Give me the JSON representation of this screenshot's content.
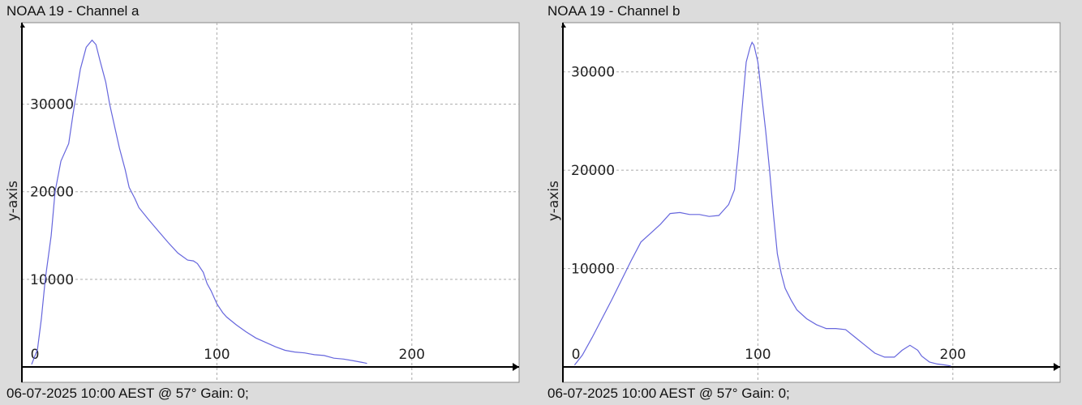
{
  "chart_data": [
    {
      "type": "line",
      "title": "NOAA 19 - Channel a",
      "xlabel": "",
      "ylabel": "y-axis",
      "footer": "06-07-2025 10:00 AEST @ 57° Gain: 0;",
      "xlim": [
        0,
        255
      ],
      "ylim": [
        0,
        39300
      ],
      "x_ticks": [
        0,
        100,
        200
      ],
      "y_ticks": [
        10000,
        20000,
        30000
      ],
      "grid": true,
      "line_color": "#6666dd",
      "x": [
        5,
        8,
        10,
        12,
        15,
        17,
        20,
        24,
        27,
        30,
        33,
        36,
        38,
        40,
        43,
        45,
        48,
        50,
        53,
        55,
        58,
        60,
        65,
        70,
        75,
        80,
        85,
        88,
        90,
        93,
        95,
        97,
        100,
        103,
        105,
        110,
        115,
        120,
        125,
        130,
        135,
        140,
        145,
        150,
        155,
        160,
        165,
        170,
        175,
        177
      ],
      "y": [
        300,
        2000,
        5500,
        10000,
        15000,
        20000,
        23500,
        25500,
        30000,
        34000,
        36500,
        37300,
        36800,
        35000,
        32500,
        30000,
        27000,
        25000,
        22500,
        20500,
        19200,
        18200,
        16800,
        15500,
        14200,
        13000,
        12200,
        12100,
        11800,
        10800,
        9500,
        8700,
        7200,
        6200,
        5700,
        4800,
        4000,
        3300,
        2800,
        2300,
        1900,
        1700,
        1600,
        1400,
        1300,
        1000,
        900,
        700,
        500,
        400
      ]
    },
    {
      "type": "line",
      "title": "NOAA 19 - Channel b",
      "xlabel": "",
      "ylabel": "y-axis",
      "footer": "06-07-2025 10:00 AEST @ 57° Gain: 0;",
      "xlim": [
        0,
        255
      ],
      "ylim": [
        0,
        35000
      ],
      "x_ticks": [
        0,
        100,
        200
      ],
      "y_ticks": [
        10000,
        20000,
        30000
      ],
      "grid": true,
      "line_color": "#6666dd",
      "x": [
        6,
        10,
        15,
        20,
        25,
        30,
        35,
        40,
        45,
        50,
        55,
        60,
        65,
        70,
        75,
        80,
        85,
        88,
        90,
        92,
        94,
        96,
        97,
        98,
        100,
        102,
        104,
        106,
        108,
        110,
        112,
        114,
        117,
        120,
        125,
        130,
        135,
        140,
        145,
        150,
        155,
        160,
        165,
        170,
        174,
        178,
        182,
        184,
        188,
        192,
        196,
        199
      ],
      "y": [
        200,
        1200,
        3000,
        4900,
        6800,
        8800,
        10800,
        12700,
        13600,
        14500,
        15600,
        15700,
        15500,
        15500,
        15300,
        15400,
        16500,
        18000,
        22000,
        26500,
        31000,
        32500,
        33000,
        32700,
        31000,
        27500,
        24000,
        20000,
        15500,
        11500,
        9500,
        8000,
        6800,
        5800,
        4900,
        4300,
        3900,
        3900,
        3800,
        3000,
        2200,
        1400,
        1000,
        1000,
        1700,
        2200,
        1700,
        1100,
        500,
        300,
        200,
        100
      ]
    }
  ]
}
